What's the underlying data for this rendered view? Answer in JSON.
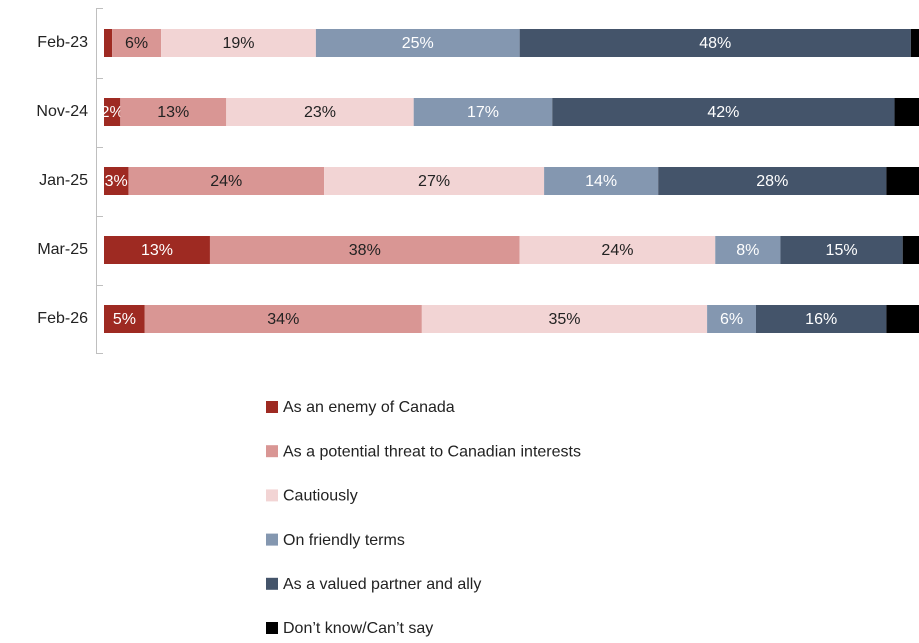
{
  "chart_data": {
    "type": "stacked_bar_horizontal",
    "categories": [
      "Feb-23",
      "Nov-24",
      "Jan-25",
      "Mar-25",
      "Feb-26"
    ],
    "xlim": [
      0,
      100
    ],
    "series": [
      {
        "name": "As an enemy of Canada",
        "color": "#9e2a22",
        "values": [
          1,
          2,
          3,
          13,
          5
        ],
        "value_labels": [
          null,
          "2%",
          "3%",
          "13%",
          "5%"
        ]
      },
      {
        "name": "As a potential threat to Canadian interests",
        "color": "#d99694",
        "values": [
          6,
          13,
          24,
          38,
          34
        ],
        "value_labels": [
          "6%",
          "13%",
          "24%",
          "38%",
          "34%"
        ]
      },
      {
        "name": "Cautiously",
        "color": "#f2d4d4",
        "values": [
          19,
          23,
          27,
          24,
          35
        ],
        "value_labels": [
          "19%",
          "23%",
          "27%",
          "24%",
          "35%"
        ]
      },
      {
        "name": "On friendly terms",
        "color": "#8497b0",
        "values": [
          25,
          17,
          14,
          8,
          6
        ],
        "value_labels": [
          "25%",
          "17%",
          "14%",
          "8%",
          "6%"
        ]
      },
      {
        "name": "As a valued partner and ally",
        "color": "#44546a",
        "values": [
          48,
          42,
          28,
          15,
          16
        ],
        "value_labels": [
          "48%",
          "42%",
          "28%",
          "15%",
          "16%"
        ]
      },
      {
        "name": "Don’t know/Can’t say",
        "color": "#000000",
        "values": [
          1,
          3,
          4,
          2,
          4
        ],
        "value_labels": [
          null,
          null,
          null,
          null,
          null
        ]
      }
    ]
  }
}
